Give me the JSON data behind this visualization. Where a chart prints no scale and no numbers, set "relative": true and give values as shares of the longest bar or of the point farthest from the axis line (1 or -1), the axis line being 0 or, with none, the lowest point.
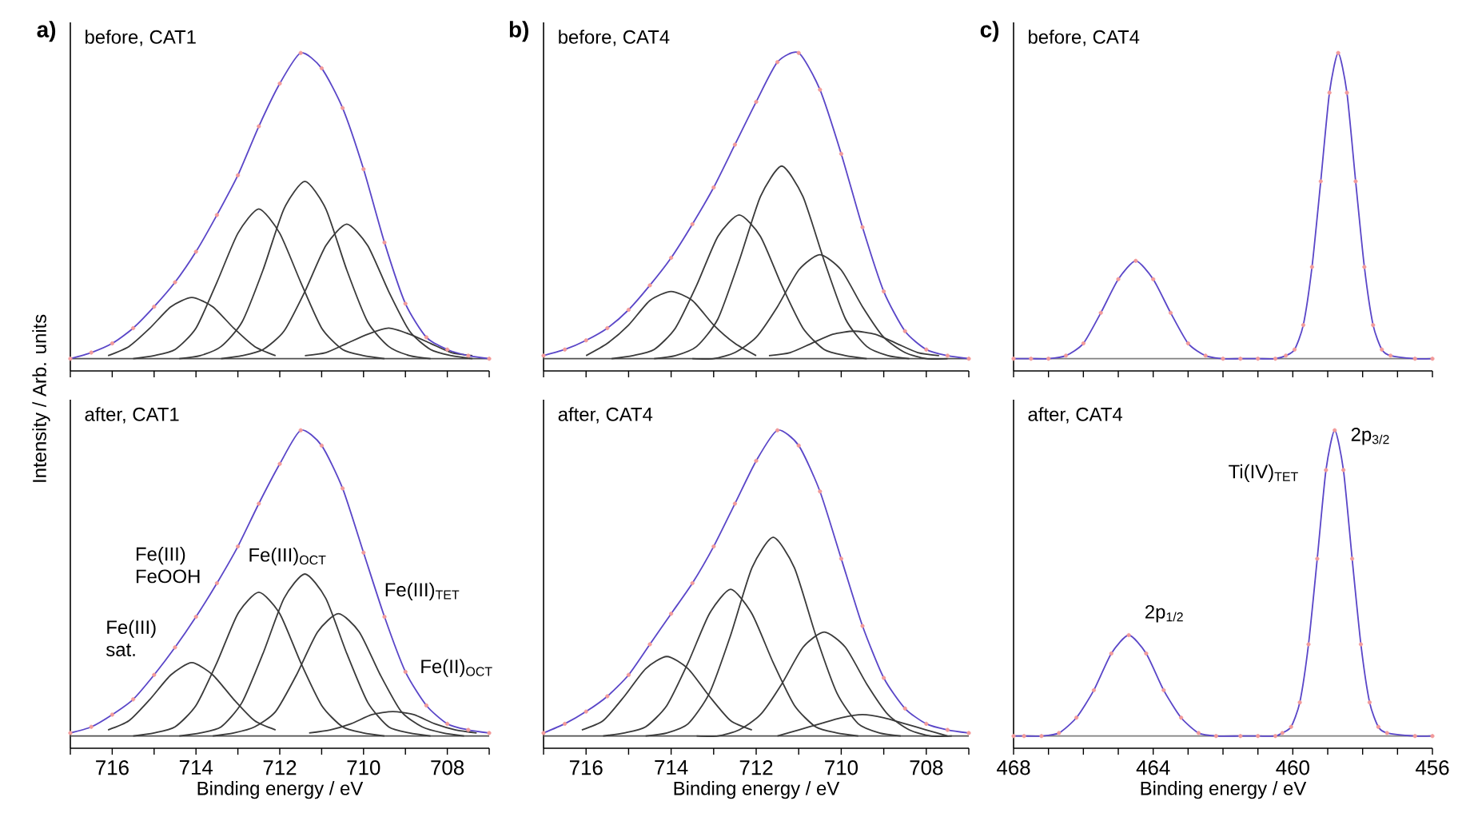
{
  "chart_data": [
    {
      "type": "line",
      "title": "before, CAT1",
      "ylabel": "Intensity / Arb. units",
      "relative": true,
      "annotations": [
        "a)"
      ],
      "tick_labels": false,
      "xlim": [
        717,
        707
      ],
      "xticks": [
        {
          "value": 717,
          "label": null
        },
        716,
        {
          "value": 715,
          "label": null
        },
        714,
        {
          "value": 713,
          "label": null
        },
        712,
        {
          "value": 711,
          "label": null
        },
        710,
        {
          "value": 709,
          "label": null
        },
        708,
        {
          "value": 707,
          "label": null
        }
      ],
      "x": [
        717,
        716.5,
        716,
        715.5,
        715,
        714.5,
        714,
        713.5,
        713,
        712.5,
        712,
        711.5,
        711,
        710.5,
        710,
        709.5,
        709,
        708.5,
        708,
        707.5,
        707
      ],
      "series": [
        {
          "type": "scatter",
          "marker": "circle",
          "color": "#f29a9a",
          "values": [
            0,
            0.02,
            0.05,
            0.1,
            0.17,
            0.25,
            0.35,
            0.47,
            0.6,
            0.76,
            0.9,
            1,
            0.95,
            0.82,
            0.62,
            0.38,
            0.18,
            0.07,
            0.03,
            0.01,
            0
          ]
        },
        {
          "color": "#505050",
          "x": [
            717,
            707
          ],
          "values": [
            0,
            0
          ]
        },
        {
          "color": "#3a3a3a",
          "x": [
            712.1,
            712.6,
            713.1,
            713.6,
            714.1,
            714.6,
            715.1,
            715.6,
            716.1
          ],
          "values": [
            0.01,
            0.04,
            0.1,
            0.17,
            0.2,
            0.17,
            0.1,
            0.04,
            0.01
          ]
        },
        {
          "color": "#3a3a3a",
          "x": [
            709.5,
            710,
            710.5,
            711,
            711.5,
            712,
            712.5,
            713,
            713.5,
            714,
            714.5,
            715,
            715.5
          ],
          "values": [
            0,
            0.01,
            0.03,
            0.1,
            0.25,
            0.41,
            0.49,
            0.41,
            0.25,
            0.1,
            0.03,
            0.01,
            0
          ]
        },
        {
          "color": "#3a3a3a",
          "x": [
            708.4,
            708.9,
            709.4,
            709.9,
            710.4,
            710.9,
            711.4,
            711.9,
            712.4,
            712.9,
            713.4,
            713.9,
            714.4
          ],
          "values": [
            0,
            0.01,
            0.04,
            0.12,
            0.29,
            0.49,
            0.58,
            0.49,
            0.29,
            0.12,
            0.04,
            0.01,
            0
          ]
        },
        {
          "color": "#3a3a3a",
          "x": [
            707.4,
            707.9,
            708.4,
            708.9,
            709.4,
            709.9,
            710.4,
            710.9,
            711.4,
            711.9,
            712.4,
            712.9,
            713.4
          ],
          "values": [
            0,
            0.01,
            0.03,
            0.09,
            0.22,
            0.37,
            0.44,
            0.37,
            0.22,
            0.09,
            0.03,
            0.01,
            0
          ]
        },
        {
          "color": "#3a3a3a",
          "x": [
            707.4,
            707.9,
            708.4,
            708.9,
            709.4,
            709.9,
            710.4,
            710.9,
            711.4
          ],
          "values": [
            0.01,
            0.02,
            0.05,
            0.08,
            0.1,
            0.08,
            0.05,
            0.02,
            0.01
          ]
        },
        {
          "color": "#5a46c8",
          "values": [
            0,
            0.02,
            0.05,
            0.1,
            0.17,
            0.25,
            0.35,
            0.47,
            0.6,
            0.76,
            0.9,
            1,
            0.95,
            0.82,
            0.62,
            0.38,
            0.18,
            0.07,
            0.03,
            0.01,
            0
          ]
        }
      ]
    },
    {
      "type": "line",
      "title": "before, CAT4",
      "relative": true,
      "annotations": [
        "b)"
      ],
      "tick_labels": false,
      "xlim": [
        717,
        707
      ],
      "xticks": [
        {
          "value": 717,
          "label": null
        },
        716,
        {
          "value": 715,
          "label": null
        },
        714,
        {
          "value": 713,
          "label": null
        },
        712,
        {
          "value": 711,
          "label": null
        },
        710,
        {
          "value": 709,
          "label": null
        },
        708,
        {
          "value": 707,
          "label": null
        }
      ],
      "x": [
        717,
        716.5,
        716,
        715.5,
        715,
        714.5,
        714,
        713.5,
        713,
        712.5,
        712,
        711.5,
        711,
        710.5,
        710,
        709.5,
        709,
        708.5,
        708,
        707.5,
        707
      ],
      "series": [
        {
          "type": "scatter",
          "marker": "circle",
          "color": "#f29a9a",
          "values": [
            0.01,
            0.03,
            0.06,
            0.1,
            0.16,
            0.24,
            0.33,
            0.44,
            0.56,
            0.7,
            0.84,
            0.97,
            1,
            0.88,
            0.67,
            0.43,
            0.22,
            0.09,
            0.03,
            0.01,
            0
          ]
        },
        {
          "color": "#505050",
          "x": [
            717,
            707
          ],
          "values": [
            0,
            0
          ]
        },
        {
          "color": "#3a3a3a",
          "x": [
            712,
            712.5,
            713,
            713.5,
            714,
            714.5,
            715,
            715.5,
            716
          ],
          "values": [
            0.01,
            0.05,
            0.11,
            0.19,
            0.22,
            0.19,
            0.11,
            0.05,
            0.01
          ]
        },
        {
          "color": "#3a3a3a",
          "x": [
            709.4,
            709.9,
            710.4,
            710.9,
            711.4,
            711.9,
            712.4,
            712.9,
            713.4,
            713.9,
            714.4,
            714.9,
            715.4
          ],
          "values": [
            0,
            0.01,
            0.03,
            0.1,
            0.24,
            0.4,
            0.47,
            0.4,
            0.24,
            0.1,
            0.03,
            0.01,
            0
          ]
        },
        {
          "color": "#3a3a3a",
          "x": [
            708.4,
            708.9,
            709.4,
            709.9,
            710.4,
            710.9,
            711.4,
            711.9,
            712.4,
            712.9,
            713.4,
            713.9,
            714.4
          ],
          "values": [
            0,
            0.01,
            0.04,
            0.13,
            0.32,
            0.53,
            0.63,
            0.53,
            0.32,
            0.13,
            0.04,
            0.01,
            0
          ]
        },
        {
          "color": "#3a3a3a",
          "x": [
            707.5,
            708,
            708.5,
            709,
            709.5,
            710,
            710.5,
            711,
            711.5,
            712,
            712.5,
            713,
            713.5
          ],
          "values": [
            0,
            0,
            0.02,
            0.07,
            0.17,
            0.29,
            0.34,
            0.29,
            0.17,
            0.07,
            0.02,
            0,
            0
          ]
        },
        {
          "color": "#3a3a3a",
          "x": [
            707.7,
            708.2,
            708.7,
            709.2,
            709.7,
            710.2,
            710.7,
            711.2,
            711.7
          ],
          "values": [
            0.01,
            0.02,
            0.05,
            0.08,
            0.09,
            0.08,
            0.05,
            0.02,
            0.01
          ]
        },
        {
          "color": "#5a46c8",
          "values": [
            0.01,
            0.03,
            0.06,
            0.1,
            0.16,
            0.24,
            0.33,
            0.44,
            0.56,
            0.7,
            0.84,
            0.97,
            1,
            0.88,
            0.67,
            0.43,
            0.22,
            0.09,
            0.03,
            0.01,
            0
          ]
        }
      ]
    },
    {
      "type": "line",
      "title": "before, CAT4",
      "relative": true,
      "annotations": [
        "c)"
      ],
      "tick_labels": false,
      "xlim": [
        468,
        456
      ],
      "xticks": [
        468,
        {
          "value": 467,
          "label": null
        },
        {
          "value": 466,
          "label": null
        },
        {
          "value": 465,
          "label": null
        },
        464,
        {
          "value": 463,
          "label": null
        },
        {
          "value": 462,
          "label": null
        },
        {
          "value": 461,
          "label": null
        },
        460,
        {
          "value": 459,
          "label": null
        },
        {
          "value": 458,
          "label": null
        },
        {
          "value": 457,
          "label": null
        },
        456
      ],
      "x": [
        468,
        467.5,
        467,
        466.5,
        466,
        465.5,
        465,
        464.5,
        464,
        463.5,
        463,
        462.5,
        462,
        461.5,
        461,
        460.5,
        460.2,
        459.95,
        459.7,
        459.45,
        459.2,
        458.95,
        458.7,
        458.45,
        458.2,
        457.95,
        457.7,
        457.45,
        457.2,
        456.5,
        456
      ],
      "series": [
        {
          "type": "scatter",
          "marker": "circle",
          "color": "#f29a9a",
          "values": [
            0,
            0,
            0,
            0.01,
            0.05,
            0.15,
            0.26,
            0.32,
            0.26,
            0.15,
            0.05,
            0.01,
            0,
            0,
            0,
            0,
            0.01,
            0.03,
            0.11,
            0.3,
            0.58,
            0.87,
            1,
            0.87,
            0.58,
            0.3,
            0.11,
            0.03,
            0.01,
            0,
            0
          ]
        },
        {
          "color": "#808080",
          "x": [
            468,
            456
          ],
          "values": [
            0,
            0
          ]
        },
        {
          "color": "#5a46c8",
          "values": [
            0,
            0,
            0,
            0.01,
            0.05,
            0.15,
            0.26,
            0.32,
            0.26,
            0.15,
            0.05,
            0.01,
            0,
            0,
            0,
            0,
            0.01,
            0.03,
            0.11,
            0.3,
            0.58,
            0.87,
            1,
            0.87,
            0.58,
            0.3,
            0.11,
            0.03,
            0.01,
            0,
            0
          ]
        }
      ]
    },
    {
      "type": "line",
      "title": "after, CAT1",
      "xlabel": "Binding energy / eV",
      "relative": true,
      "tick_labels": "x",
      "annotations": [
        "Fe(III) sat.",
        "Fe(III) FeOOH",
        "Fe(III)$_{OCT}$",
        "Fe(III)$_{TET}$",
        "Fe(II)$_{OCT}$"
      ],
      "xlim": [
        717,
        707
      ],
      "xticks": [
        {
          "value": 717,
          "label": null
        },
        716,
        {
          "value": 715,
          "label": null
        },
        714,
        {
          "value": 713,
          "label": null
        },
        712,
        {
          "value": 711,
          "label": null
        },
        710,
        {
          "value": 709,
          "label": null
        },
        708,
        {
          "value": 707,
          "label": null
        }
      ],
      "x": [
        717,
        716.5,
        716,
        715.5,
        715,
        714.5,
        714,
        713.5,
        713,
        712.5,
        712,
        711.5,
        711,
        710.5,
        710,
        709.5,
        709,
        708.5,
        708,
        707.5,
        707
      ],
      "series": [
        {
          "type": "scatter",
          "marker": "circle",
          "color": "#f29a9a",
          "values": [
            0.01,
            0.03,
            0.07,
            0.12,
            0.2,
            0.29,
            0.39,
            0.5,
            0.62,
            0.76,
            0.89,
            1,
            0.95,
            0.81,
            0.6,
            0.39,
            0.21,
            0.1,
            0.04,
            0.02,
            0.01
          ]
        },
        {
          "color": "#505050",
          "x": [
            717,
            707
          ],
          "values": [
            0,
            0
          ]
        },
        {
          "color": "#3a3a3a",
          "x": [
            712.1,
            712.6,
            713.1,
            713.6,
            714.1,
            714.6,
            715.1,
            715.6,
            716.1
          ],
          "values": [
            0.02,
            0.05,
            0.12,
            0.2,
            0.24,
            0.2,
            0.12,
            0.05,
            0.02
          ]
        },
        {
          "color": "#3a3a3a",
          "x": [
            709.5,
            710,
            710.5,
            711,
            711.5,
            712,
            712.5,
            713,
            713.5,
            714,
            714.5,
            715,
            715.5
          ],
          "values": [
            0,
            0.01,
            0.03,
            0.1,
            0.24,
            0.4,
            0.47,
            0.4,
            0.24,
            0.1,
            0.03,
            0.01,
            0
          ]
        },
        {
          "color": "#3a3a3a",
          "x": [
            708.4,
            708.9,
            709.4,
            709.9,
            710.4,
            710.9,
            711.4,
            711.9,
            712.4,
            712.9,
            713.4,
            713.9,
            714.4
          ],
          "values": [
            0,
            0.01,
            0.03,
            0.11,
            0.27,
            0.45,
            0.53,
            0.45,
            0.27,
            0.11,
            0.03,
            0.01,
            0
          ]
        },
        {
          "color": "#3a3a3a",
          "x": [
            707.6,
            708.1,
            708.6,
            709.1,
            709.6,
            710.1,
            710.6,
            711.1,
            711.6,
            712.1,
            712.6,
            713.1,
            713.6
          ],
          "values": [
            0,
            0.01,
            0.03,
            0.08,
            0.2,
            0.34,
            0.4,
            0.34,
            0.2,
            0.08,
            0.03,
            0.01,
            0
          ]
        },
        {
          "color": "#3a3a3a",
          "x": [
            707.3,
            707.8,
            708.3,
            708.8,
            709.3,
            709.8,
            710.3,
            710.8,
            711.3
          ],
          "values": [
            0.01,
            0.02,
            0.04,
            0.07,
            0.08,
            0.07,
            0.04,
            0.02,
            0.01
          ]
        },
        {
          "color": "#5a46c8",
          "values": [
            0.01,
            0.03,
            0.07,
            0.12,
            0.2,
            0.29,
            0.39,
            0.5,
            0.62,
            0.76,
            0.89,
            1,
            0.95,
            0.81,
            0.6,
            0.39,
            0.21,
            0.1,
            0.04,
            0.02,
            0.01
          ]
        }
      ]
    },
    {
      "type": "line",
      "title": "after, CAT4",
      "xlabel": "Binding energy / eV",
      "relative": true,
      "tick_labels": "x",
      "xlim": [
        717,
        707
      ],
      "xticks": [
        {
          "value": 717,
          "label": null
        },
        716,
        {
          "value": 715,
          "label": null
        },
        714,
        {
          "value": 713,
          "label": null
        },
        712,
        {
          "value": 711,
          "label": null
        },
        710,
        {
          "value": 709,
          "label": null
        },
        708,
        {
          "value": 707,
          "label": null
        }
      ],
      "x": [
        717,
        716.5,
        716,
        715.5,
        715,
        714.5,
        714,
        713.5,
        713,
        712.5,
        712,
        711.5,
        711,
        710.5,
        710,
        709.5,
        709,
        708.5,
        708,
        707.5,
        707
      ],
      "series": [
        {
          "type": "scatter",
          "marker": "circle",
          "color": "#f29a9a",
          "values": [
            0.01,
            0.04,
            0.08,
            0.13,
            0.2,
            0.3,
            0.4,
            0.5,
            0.62,
            0.76,
            0.9,
            1,
            0.95,
            0.8,
            0.58,
            0.36,
            0.19,
            0.09,
            0.04,
            0.02,
            0.01
          ]
        },
        {
          "color": "#505050",
          "x": [
            717,
            707
          ],
          "values": [
            0,
            0
          ]
        },
        {
          "color": "#3a3a3a",
          "x": [
            712.1,
            712.6,
            713.1,
            713.6,
            714.1,
            714.6,
            715.1,
            715.6,
            716.1
          ],
          "values": [
            0.02,
            0.05,
            0.13,
            0.22,
            0.26,
            0.22,
            0.13,
            0.05,
            0.02
          ]
        },
        {
          "color": "#3a3a3a",
          "x": [
            709.6,
            710.1,
            710.6,
            711.1,
            711.6,
            712.1,
            712.6,
            713.1,
            713.6,
            714.1,
            714.6,
            715.1,
            715.6
          ],
          "values": [
            0,
            0.01,
            0.03,
            0.1,
            0.24,
            0.4,
            0.48,
            0.4,
            0.24,
            0.1,
            0.03,
            0.01,
            0
          ]
        },
        {
          "color": "#3a3a3a",
          "x": [
            708.6,
            709.1,
            709.6,
            710.1,
            710.6,
            711.1,
            711.6,
            712.1,
            712.6,
            713.1,
            713.6,
            714.1,
            714.6
          ],
          "values": [
            0,
            0.01,
            0.04,
            0.14,
            0.33,
            0.55,
            0.65,
            0.55,
            0.33,
            0.14,
            0.04,
            0.01,
            0
          ]
        },
        {
          "color": "#3a3a3a",
          "x": [
            707.4,
            707.9,
            708.4,
            708.9,
            709.4,
            709.9,
            710.4,
            710.9,
            711.4,
            711.9,
            712.4,
            712.9,
            713.4
          ],
          "values": [
            0,
            0,
            0.02,
            0.07,
            0.17,
            0.29,
            0.34,
            0.29,
            0.17,
            0.07,
            0.02,
            0,
            0
          ]
        },
        {
          "color": "#3a3a3a",
          "x": [
            707.5,
            708,
            708.5,
            709,
            709.5,
            710,
            710.5,
            711,
            711.5
          ],
          "values": [
            0,
            0.02,
            0.04,
            0.06,
            0.07,
            0.06,
            0.04,
            0.02,
            0
          ]
        },
        {
          "color": "#5a46c8",
          "values": [
            0.01,
            0.04,
            0.08,
            0.13,
            0.2,
            0.3,
            0.4,
            0.5,
            0.62,
            0.76,
            0.9,
            1,
            0.95,
            0.8,
            0.58,
            0.36,
            0.19,
            0.09,
            0.04,
            0.02,
            0.01
          ]
        }
      ]
    },
    {
      "type": "line",
      "title": "after, CAT4",
      "xlabel": "Binding energy / eV",
      "relative": true,
      "tick_labels": "x",
      "annotations": [
        "Ti(IV)$_{TET}$",
        "2p$_{3/2}$",
        "2p$_{1/2}$"
      ],
      "xlim": [
        468,
        456
      ],
      "xticks": [
        468,
        {
          "value": 467,
          "label": null
        },
        {
          "value": 466,
          "label": null
        },
        {
          "value": 465,
          "label": null
        },
        464,
        {
          "value": 463,
          "label": null
        },
        {
          "value": 462,
          "label": null
        },
        {
          "value": 461,
          "label": null
        },
        460,
        {
          "value": 459,
          "label": null
        },
        {
          "value": 458,
          "label": null
        },
        {
          "value": 457,
          "label": null
        },
        456
      ],
      "x": [
        468,
        467.7,
        467.2,
        466.7,
        466.2,
        465.7,
        465.2,
        464.7,
        464.2,
        463.7,
        463.2,
        462.7,
        462.2,
        461.5,
        461,
        460.5,
        460.3,
        460.05,
        459.8,
        459.55,
        459.3,
        459.05,
        458.8,
        458.55,
        458.3,
        458.05,
        457.8,
        457.55,
        457.3,
        456.5,
        456
      ],
      "series": [
        {
          "type": "scatter",
          "marker": "circle",
          "color": "#f29a9a",
          "values": [
            0,
            0,
            0,
            0.01,
            0.06,
            0.15,
            0.27,
            0.33,
            0.27,
            0.15,
            0.06,
            0.01,
            0,
            0,
            0,
            0,
            0.01,
            0.03,
            0.11,
            0.3,
            0.58,
            0.87,
            1,
            0.87,
            0.58,
            0.3,
            0.11,
            0.03,
            0.01,
            0,
            0
          ]
        },
        {
          "color": "#808080",
          "x": [
            468,
            456
          ],
          "values": [
            0,
            0
          ]
        },
        {
          "color": "#5a46c8",
          "values": [
            0,
            0,
            0,
            0.01,
            0.06,
            0.15,
            0.27,
            0.33,
            0.27,
            0.15,
            0.06,
            0.01,
            0,
            0,
            0,
            0,
            0.01,
            0.03,
            0.11,
            0.3,
            0.58,
            0.87,
            1,
            0.87,
            0.58,
            0.3,
            0.11,
            0.03,
            0.01,
            0,
            0
          ]
        }
      ]
    }
  ]
}
